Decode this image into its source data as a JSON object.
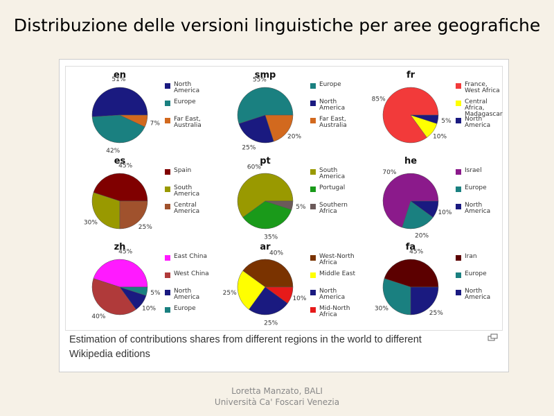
{
  "slide": {
    "title": "Distribuzione delle versioni linguistiche per aree geografiche",
    "caption": "Estimation of contributions shares from different regions in the world to different Wikipedia editions",
    "footer": [
      "Loretta Manzato, BALI",
      "Università Ca' Foscari Venezia"
    ]
  },
  "chart_data": [
    {
      "type": "pie",
      "title": "en",
      "categories": [
        "North America",
        "Europe",
        "Far East, Australia"
      ],
      "values": [
        51,
        42,
        7
      ],
      "value_labels": [
        "51%",
        "42%",
        "7%"
      ],
      "colors": [
        "#1a1a80",
        "#1a8080",
        "#d2691e"
      ]
    },
    {
      "type": "pie",
      "title": "smp",
      "categories": [
        "Europe",
        "North America",
        "Far East, Australia"
      ],
      "values": [
        55,
        25,
        20
      ],
      "value_labels": [
        "55%",
        "25%",
        "20%"
      ],
      "colors": [
        "#1a8080",
        "#1a1a80",
        "#d2691e"
      ]
    },
    {
      "type": "pie",
      "title": "fr",
      "categories": [
        "France, West Africa",
        "Central Africa, Madagascar",
        "North America"
      ],
      "values": [
        85,
        10,
        5
      ],
      "value_labels": [
        "85%",
        "10%",
        "5%"
      ],
      "colors": [
        "#f23a3a",
        "#ffff00",
        "#1a1a80"
      ]
    },
    {
      "type": "pie",
      "title": "es",
      "categories": [
        "Spain",
        "South America",
        "Central America"
      ],
      "values": [
        45,
        30,
        25
      ],
      "value_labels": [
        "45%",
        "30%",
        "25%"
      ],
      "colors": [
        "#800000",
        "#999900",
        "#a0522d"
      ]
    },
    {
      "type": "pie",
      "title": "pt",
      "categories": [
        "South America",
        "Portugal",
        "Southern Africa"
      ],
      "values": [
        60,
        35,
        5
      ],
      "value_labels": [
        "60%",
        "35%",
        "5%"
      ],
      "colors": [
        "#999900",
        "#1a9a1a",
        "#6b5a5a"
      ]
    },
    {
      "type": "pie",
      "title": "he",
      "categories": [
        "Israel",
        "Europe",
        "North America"
      ],
      "values": [
        70,
        20,
        10
      ],
      "value_labels": [
        "70%",
        "20%",
        "10%"
      ],
      "colors": [
        "#8b1a8b",
        "#1a8080",
        "#1a1a80"
      ]
    },
    {
      "type": "pie",
      "title": "zh",
      "categories": [
        "East China",
        "West China",
        "North America",
        "Europe"
      ],
      "values": [
        45,
        40,
        10,
        5
      ],
      "value_labels": [
        "45%",
        "40%",
        "10%",
        "5%"
      ],
      "colors": [
        "#ff1aff",
        "#b03a3a",
        "#1a1a80",
        "#1a8080"
      ]
    },
    {
      "type": "pie",
      "title": "ar",
      "categories": [
        "West-North Africa",
        "Middle East",
        "North America",
        "Mid-North Africa"
      ],
      "values": [
        40,
        25,
        25,
        10
      ],
      "value_labels": [
        "40%",
        "25%",
        "25%",
        "10%"
      ],
      "colors": [
        "#7a3300",
        "#ffff00",
        "#1a1a80",
        "#e61a1a"
      ]
    },
    {
      "type": "pie",
      "title": "fa",
      "categories": [
        "Iran",
        "Europe",
        "North America"
      ],
      "values": [
        45,
        30,
        25
      ],
      "value_labels": [
        "45%",
        "30%",
        "25%"
      ],
      "colors": [
        "#5c0000",
        "#1a8080",
        "#1a1a80"
      ]
    }
  ]
}
